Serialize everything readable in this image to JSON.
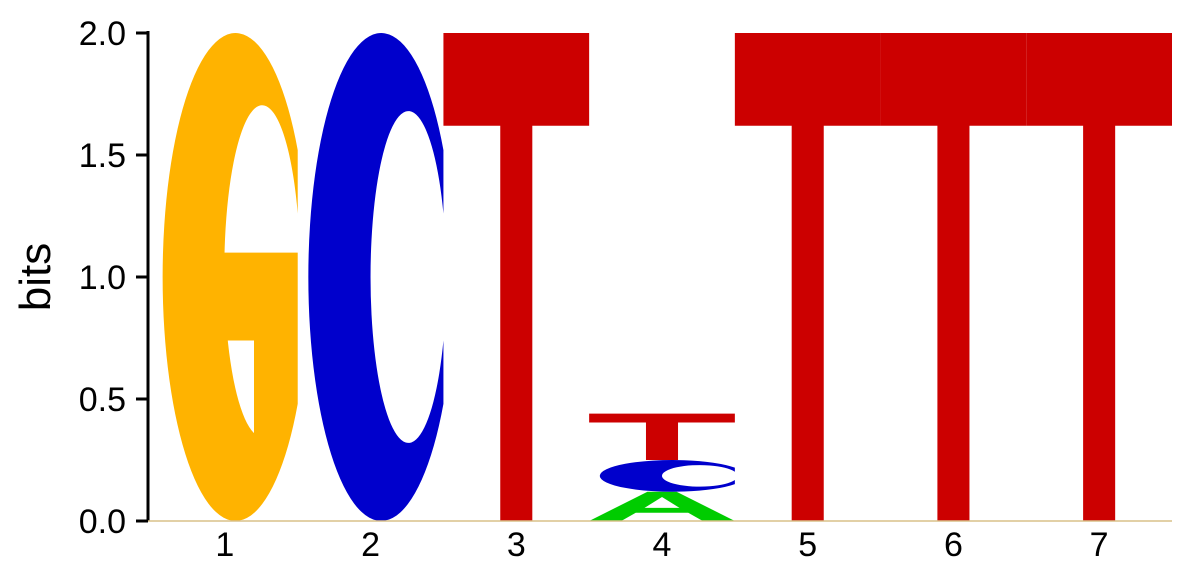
{
  "chart_data": {
    "type": "sequence-logo",
    "ylabel": "bits",
    "ylim": [
      0,
      2.0
    ],
    "yticks": [
      "0.0",
      "0.5",
      "1.0",
      "1.5",
      "2.0"
    ],
    "positions": [
      "1",
      "2",
      "3",
      "4",
      "5",
      "6",
      "7"
    ],
    "letter_colors": {
      "A": "#00CC00",
      "C": "#0000CC",
      "G": "#FFB300",
      "T": "#CC0000"
    },
    "stacks": [
      [
        {
          "letter": "G",
          "bits": 2.0
        }
      ],
      [
        {
          "letter": "C",
          "bits": 2.0
        }
      ],
      [
        {
          "letter": "T",
          "bits": 2.0
        }
      ],
      [
        {
          "letter": "A",
          "bits": 0.12
        },
        {
          "letter": "C",
          "bits": 0.13
        },
        {
          "letter": "T",
          "bits": 0.19
        }
      ],
      [
        {
          "letter": "T",
          "bits": 2.0
        }
      ],
      [
        {
          "letter": "T",
          "bits": 2.0
        }
      ],
      [
        {
          "letter": "T",
          "bits": 2.0
        }
      ]
    ]
  }
}
